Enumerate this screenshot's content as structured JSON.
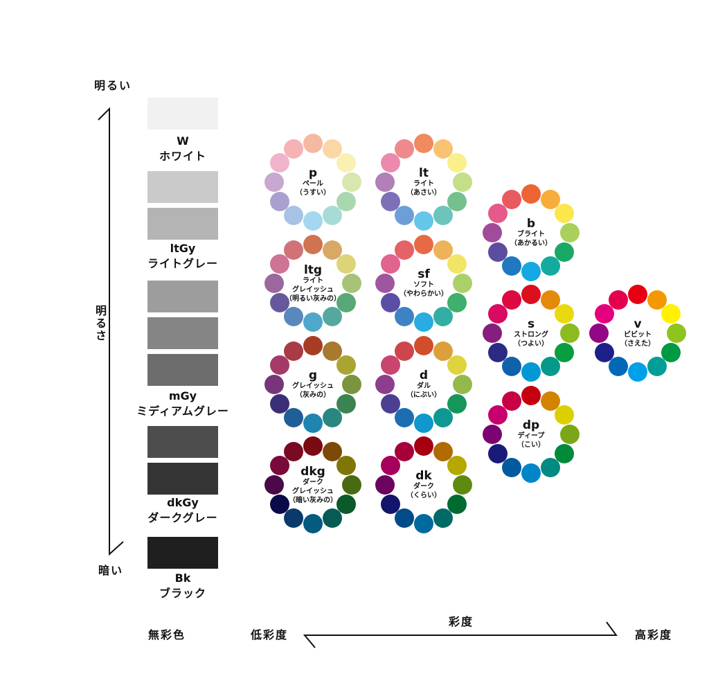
{
  "brightness_axis": {
    "top_label": "明るい",
    "middle_label": "明るさ",
    "bottom_label": "暗い"
  },
  "saturation_axis": {
    "left_label": "低彩度",
    "center_label": "彩度",
    "right_label": "高彩度",
    "achromatic_label": "無彩色"
  },
  "grays": [
    {
      "code": "W",
      "name": "ホワイト",
      "swatches": [
        "#f1f1f1"
      ]
    },
    {
      "code": "ltGy",
      "name": "ライトグレー",
      "swatches": [
        "#cacaca",
        "#b4b4b4"
      ]
    },
    {
      "code": "mGy",
      "name": "ミディアムグレー",
      "swatches": [
        "#9d9d9d",
        "#858585",
        "#6d6d6d"
      ]
    },
    {
      "code": "dkGy",
      "name": "ダークグレー",
      "swatches": [
        "#4d4d4d",
        "#353535"
      ]
    },
    {
      "code": "Bk",
      "name": "ブラック",
      "swatches": [
        "#1f1f1f"
      ]
    }
  ],
  "tones": {
    "p": {
      "code": "p",
      "name_lines": [
        "ペール",
        "（うすい）"
      ],
      "colors": [
        "#f5b9a2",
        "#fbd7a6",
        "#fbf0b4",
        "#d8e6b0",
        "#a9d7b0",
        "#a7dcd6",
        "#a3d8f0",
        "#a8c2e6",
        "#ab9fd0",
        "#c9a8d0",
        "#f0b3cc",
        "#f5b3b5"
      ]
    },
    "lt": {
      "code": "lt",
      "name_lines": [
        "ライト",
        "（あさい）"
      ],
      "colors": [
        "#f08a5f",
        "#f9c373",
        "#f9f08a",
        "#c4de8a",
        "#74c18e",
        "#6cc4bd",
        "#66c6ea",
        "#6d9fd6",
        "#7f6fb8",
        "#b27fb6",
        "#ec8aae",
        "#ee8a8e"
      ]
    },
    "b": {
      "code": "b",
      "name_lines": [
        "ブライト",
        "（あかるい）"
      ],
      "colors": [
        "#ec6434",
        "#f8ad3b",
        "#fbe64c",
        "#a8d05a",
        "#1aa866",
        "#14aa9e",
        "#14a9e2",
        "#1f78c0",
        "#5c4d9f",
        "#a04c9a",
        "#e6598b",
        "#e85a60"
      ]
    },
    "ltg": {
      "code": "ltg",
      "name_lines": [
        "ライト",
        "グレイッシュ",
        "（明るい灰みの）"
      ],
      "colors": [
        "#d0734f",
        "#d9a866",
        "#ddd479",
        "#a8c277",
        "#59a877",
        "#55a8a0",
        "#4fa8cb",
        "#5a88bb",
        "#65599c",
        "#9a689c",
        "#cd7396",
        "#d07277"
      ]
    },
    "sf": {
      "code": "sf",
      "name_lines": [
        "ソフト",
        "（やわらかい）"
      ],
      "colors": [
        "#e56a45",
        "#eeb259",
        "#f0e566",
        "#a9d06a",
        "#3eaf6c",
        "#33aea3",
        "#29acdf",
        "#3d82c5",
        "#5a4ea5",
        "#9f56a0",
        "#e0648e",
        "#e36367"
      ]
    },
    "g": {
      "code": "g",
      "name_lines": [
        "グレイッシュ",
        "（灰みの）"
      ],
      "colors": [
        "#a63d24",
        "#a8792e",
        "#aaa533",
        "#7b9440",
        "#3a8453",
        "#2a8680",
        "#1f84b0",
        "#1f5e97",
        "#3b2f78",
        "#773679",
        "#a53a69",
        "#a83b45"
      ]
    },
    "d": {
      "code": "d",
      "name_lines": [
        "ダル",
        "（にぶい）"
      ],
      "colors": [
        "#d24d2c",
        "#dba03a",
        "#dfd43e",
        "#95b84d",
        "#16965a",
        "#0f9891",
        "#0e98cd",
        "#1c6eb1",
        "#4a3f91",
        "#8c3e8c",
        "#c9446f",
        "#cd464c"
      ]
    },
    "s": {
      "code": "s",
      "name_lines": [
        "ストロング",
        "（つよい）"
      ],
      "colors": [
        "#dc0f1f",
        "#e48a0b",
        "#ebd90f",
        "#8bbb1e",
        "#089d40",
        "#05998c",
        "#0298d4",
        "#1061ac",
        "#2b2a85",
        "#851e7e",
        "#d90a62",
        "#dc0a40"
      ]
    },
    "v": {
      "code": "v",
      "name_lines": [
        "ビビット",
        "（さえた）"
      ],
      "colors": [
        "#e60012",
        "#f39800",
        "#fff100",
        "#8fc31f",
        "#009944",
        "#009e96",
        "#00a0e9",
        "#0068b7",
        "#1d2088",
        "#920783",
        "#e4007f",
        "#e5004f"
      ]
    },
    "dkg": {
      "code": "dkg",
      "name_lines": [
        "ダーク",
        "グレイッシュ",
        "（暗い灰みの）"
      ],
      "colors": [
        "#7a0a14",
        "#7c4a06",
        "#7e7607",
        "#4a6a12",
        "#0a5a2a",
        "#085a55",
        "#055a80",
        "#0a3a6a",
        "#0a0a4a",
        "#4a0a4a",
        "#7a0a3a",
        "#7a0a24"
      ]
    },
    "dk": {
      "code": "dk",
      "name_lines": [
        "ダーク",
        "（くらい）"
      ],
      "colors": [
        "#a60010",
        "#b06a00",
        "#b5a800",
        "#5f8a12",
        "#006b30",
        "#006a66",
        "#00699e",
        "#004b88",
        "#14146a",
        "#6a045e",
        "#a6005c",
        "#a6003a"
      ]
    },
    "dp": {
      "code": "dp",
      "name_lines": [
        "ディープ",
        "（こい）"
      ],
      "colors": [
        "#c4000f",
        "#d28400",
        "#dccf00",
        "#7ba617",
        "#008a3a",
        "#008a82",
        "#0085c9",
        "#005aa0",
        "#1a1a7a",
        "#7c0472",
        "#c8006e",
        "#c80044"
      ]
    }
  }
}
